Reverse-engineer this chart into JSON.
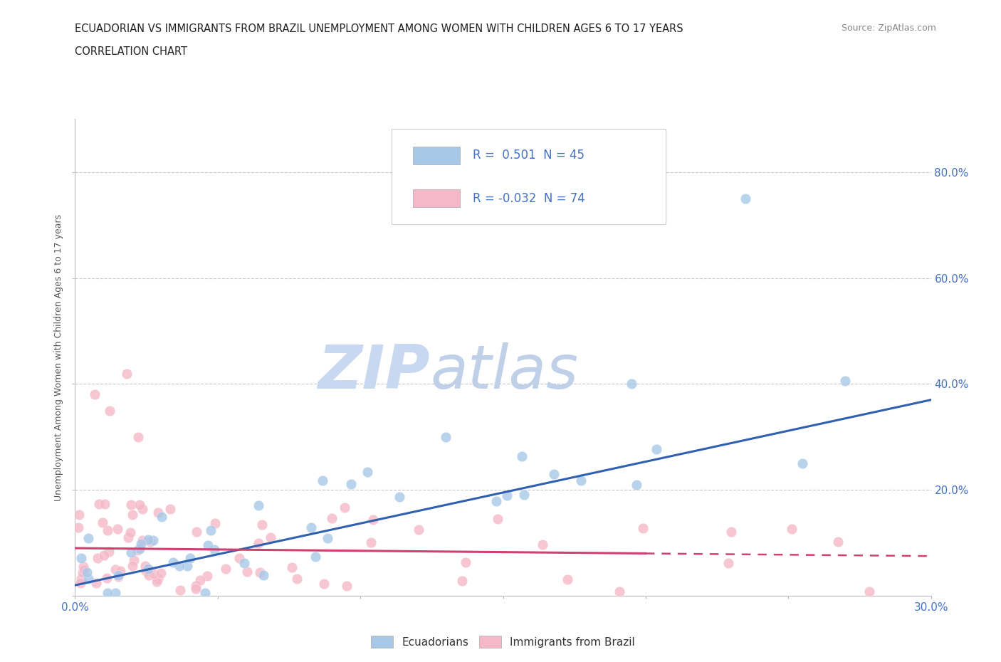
{
  "title_line1": "ECUADORIAN VS IMMIGRANTS FROM BRAZIL UNEMPLOYMENT AMONG WOMEN WITH CHILDREN AGES 6 TO 17 YEARS",
  "title_line2": "CORRELATION CHART",
  "source": "Source: ZipAtlas.com",
  "ylabel": "Unemployment Among Women with Children Ages 6 to 17 years",
  "xlim": [
    0.0,
    0.3
  ],
  "ylim": [
    0.0,
    0.9
  ],
  "yticks": [
    0.0,
    0.2,
    0.4,
    0.6,
    0.8
  ],
  "xticks": [
    0.0,
    0.05,
    0.1,
    0.15,
    0.2,
    0.25,
    0.3
  ],
  "blue_color": "#a8c8e8",
  "pink_color": "#f4b8c8",
  "blue_line_color": "#3060b0",
  "pink_line_color": "#d04070",
  "blue_R": 0.501,
  "blue_N": 45,
  "pink_R": -0.032,
  "pink_N": 74,
  "watermark_zip_color": "#c8d8f0",
  "watermark_atlas_color": "#c0d0e8",
  "background_color": "#ffffff",
  "grid_color": "#c8c8c8",
  "title_color": "#222222",
  "source_color": "#888888",
  "tick_label_color": "#4472c4",
  "ylabel_color": "#555555"
}
